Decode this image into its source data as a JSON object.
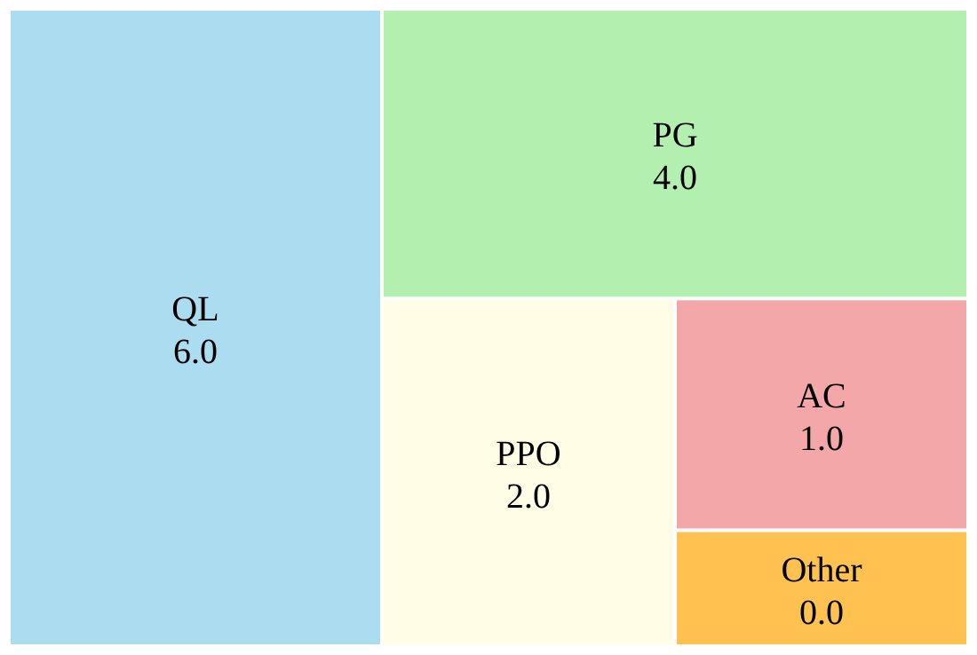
{
  "chart_data": {
    "type": "other",
    "categories": [
      "QL",
      "PG",
      "PPO",
      "AC",
      "Other"
    ],
    "values": [
      6.0,
      4.0,
      2.0,
      1.0,
      0.0
    ],
    "value_labels": [
      "6.0",
      "4.0",
      "2.0",
      "1.0",
      "0.0"
    ],
    "colors": [
      "#abdcf0",
      "#b3f0b0",
      "#fffde6",
      "#f4a7a8",
      "#ffc150"
    ]
  }
}
